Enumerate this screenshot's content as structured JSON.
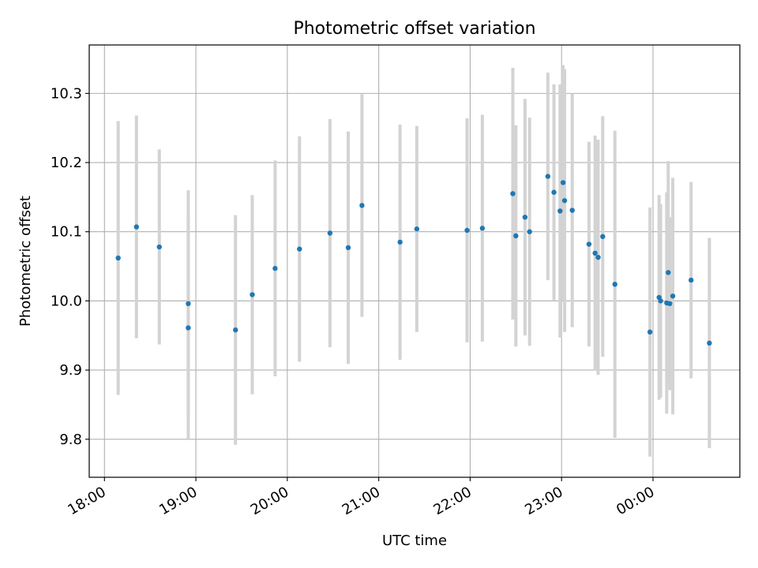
{
  "chart_data": {
    "type": "scatter",
    "title": "Photometric offset variation",
    "xlabel": "UTC time",
    "ylabel": "Photometric offset",
    "x_unit": "hours (UTC clock, continuing past midnight)",
    "x_range": [
      "17:50",
      "00:57"
    ],
    "ylim": [
      9.745,
      10.37
    ],
    "x_ticks": [
      {
        "label": "18:00",
        "hour": 18
      },
      {
        "label": "19:00",
        "hour": 19
      },
      {
        "label": "20:00",
        "hour": 20
      },
      {
        "label": "21:00",
        "hour": 21
      },
      {
        "label": "22:00",
        "hour": 22
      },
      {
        "label": "23:00",
        "hour": 23
      },
      {
        "label": "00:00",
        "hour": 24
      }
    ],
    "y_ticks": [
      "9.8",
      "9.9",
      "10.0",
      "10.1",
      "10.2",
      "10.3"
    ],
    "grid": true,
    "marker_color": "#1f77b4",
    "errorbar_color": "#d3d3d3",
    "points": [
      {
        "time": "18:09",
        "y": 10.062,
        "err": 0.198
      },
      {
        "time": "18:21",
        "y": 10.107,
        "err": 0.161
      },
      {
        "time": "18:36",
        "y": 10.078,
        "err": 0.141
      },
      {
        "time": "18:55",
        "y": 9.961,
        "err": 0.161
      },
      {
        "time": "18:55",
        "y": 9.996,
        "err": 0.164
      },
      {
        "time": "19:26",
        "y": 9.958,
        "err": 0.166
      },
      {
        "time": "19:37",
        "y": 10.009,
        "err": 0.144
      },
      {
        "time": "19:52",
        "y": 10.047,
        "err": 0.156
      },
      {
        "time": "20:08",
        "y": 10.075,
        "err": 0.163
      },
      {
        "time": "20:28",
        "y": 10.098,
        "err": 0.165
      },
      {
        "time": "20:40",
        "y": 10.077,
        "err": 0.168
      },
      {
        "time": "20:49",
        "y": 10.138,
        "err": 0.161
      },
      {
        "time": "21:14",
        "y": 10.085,
        "err": 0.17
      },
      {
        "time": "21:25",
        "y": 10.104,
        "err": 0.149
      },
      {
        "time": "21:58",
        "y": 10.102,
        "err": 0.162
      },
      {
        "time": "22:08",
        "y": 10.105,
        "err": 0.164
      },
      {
        "time": "22:28",
        "y": 10.155,
        "err": 0.182
      },
      {
        "time": "22:30",
        "y": 10.094,
        "err": 0.16
      },
      {
        "time": "22:36",
        "y": 10.121,
        "err": 0.171
      },
      {
        "time": "22:39",
        "y": 10.1,
        "err": 0.165
      },
      {
        "time": "22:51",
        "y": 10.18,
        "err": 0.15
      },
      {
        "time": "22:55",
        "y": 10.157,
        "err": 0.156
      },
      {
        "time": "22:59",
        "y": 10.13,
        "err": 0.183
      },
      {
        "time": "23:01",
        "y": 10.171,
        "err": 0.17
      },
      {
        "time": "23:02",
        "y": 10.145,
        "err": 0.19
      },
      {
        "time": "23:07",
        "y": 10.131,
        "err": 0.169
      },
      {
        "time": "23:18",
        "y": 10.082,
        "err": 0.148
      },
      {
        "time": "23:22",
        "y": 10.069,
        "err": 0.17
      },
      {
        "time": "23:24",
        "y": 10.063,
        "err": 0.17
      },
      {
        "time": "23:27",
        "y": 10.093,
        "err": 0.174
      },
      {
        "time": "23:35",
        "y": 10.024,
        "err": 0.222
      },
      {
        "time": "23:58",
        "y": 9.955,
        "err": 0.18
      },
      {
        "time": "00:04",
        "y": 10.005,
        "err": 0.148
      },
      {
        "time": "00:05",
        "y": 10.0,
        "err": 0.14
      },
      {
        "time": "00:09",
        "y": 9.997,
        "err": 0.16
      },
      {
        "time": "00:10",
        "y": 10.041,
        "err": 0.161
      },
      {
        "time": "00:11",
        "y": 9.996,
        "err": 0.125
      },
      {
        "time": "00:13",
        "y": 10.007,
        "err": 0.171
      },
      {
        "time": "00:25",
        "y": 10.03,
        "err": 0.142
      },
      {
        "time": "00:37",
        "y": 9.939,
        "err": 0.152
      }
    ]
  }
}
